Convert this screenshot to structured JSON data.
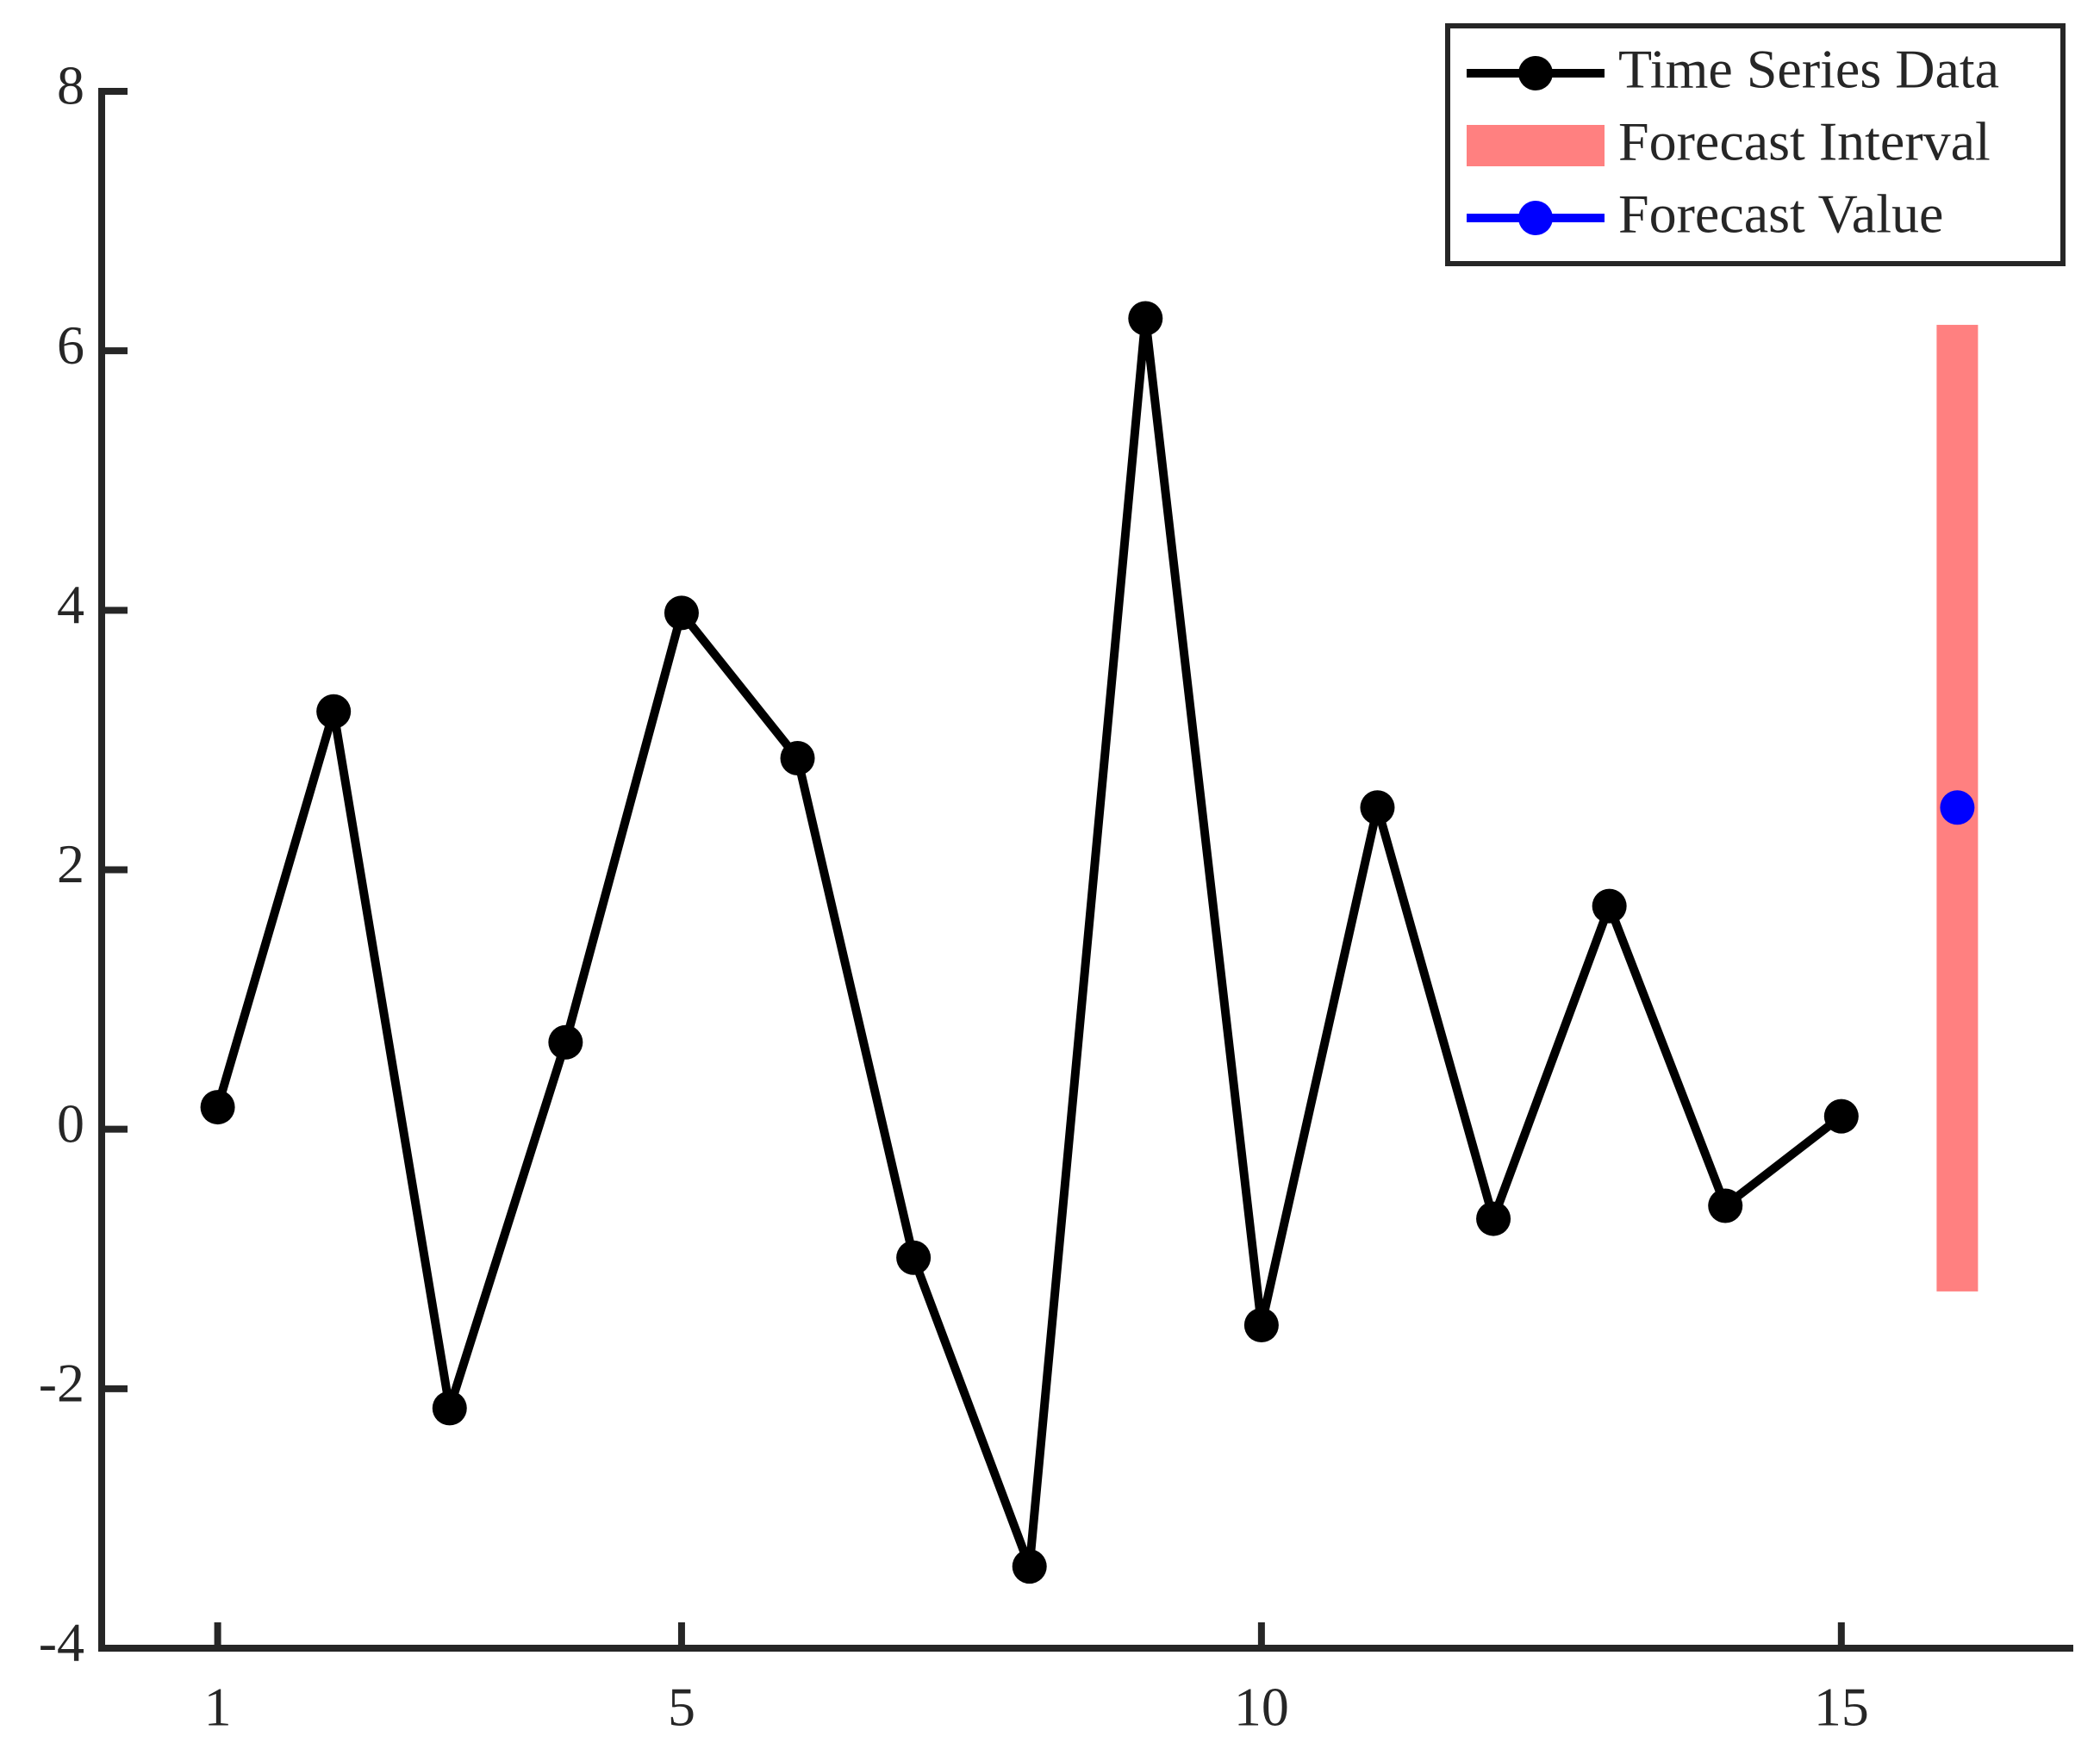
{
  "chart_data": {
    "type": "line",
    "x": [
      1,
      2,
      3,
      4,
      5,
      6,
      7,
      8,
      9,
      10,
      11,
      12,
      13,
      14,
      15
    ],
    "series": [
      {
        "name": "Time Series Data",
        "color": "#000000",
        "values": [
          0.17,
          3.22,
          -2.15,
          0.67,
          3.98,
          2.86,
          -0.99,
          -3.37,
          6.25,
          -1.51,
          2.48,
          -0.69,
          1.72,
          -0.59,
          0.1
        ]
      }
    ],
    "forecast_interval": {
      "name": "Forecast Interval",
      "color": "#ff8080",
      "x": 16,
      "low": -1.25,
      "high": 6.2
    },
    "forecast_value": {
      "name": "Forecast Value",
      "color": "#0000ff",
      "x": 16,
      "value": 2.48
    },
    "xlim": [
      0,
      17
    ],
    "xticks": [
      1,
      5,
      10,
      15
    ],
    "ylim": [
      -4,
      8
    ],
    "yticks": [
      -4,
      -2,
      0,
      2,
      4,
      6,
      8
    ],
    "legend": "upper right"
  }
}
